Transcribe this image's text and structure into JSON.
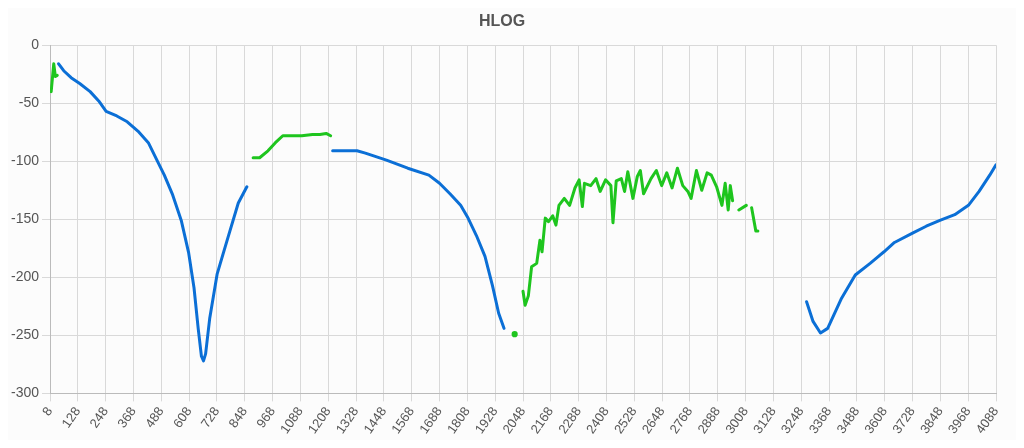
{
  "chart_data": {
    "type": "line",
    "title": "HLOG",
    "xlim": [
      8,
      4088
    ],
    "xticks": [
      8,
      128,
      248,
      368,
      488,
      608,
      728,
      848,
      968,
      1088,
      1208,
      1328,
      1448,
      1568,
      1688,
      1808,
      1928,
      2048,
      2168,
      2288,
      2408,
      2528,
      2648,
      2768,
      2888,
      3008,
      3128,
      3248,
      3368,
      3488,
      3608,
      3728,
      3848,
      3968,
      4088
    ],
    "ylim": [
      -300,
      0
    ],
    "yticks": [
      -300,
      -250,
      -200,
      -150,
      -100,
      -50,
      0
    ],
    "grid": true,
    "legend": false,
    "series": [
      {
        "color": "#0b6fd6",
        "x": [
          45,
          67,
          99,
          136,
          181,
          218,
          250,
          296,
          341,
          387,
          432,
          469,
          501,
          537,
          574,
          606,
          629,
          647,
          661,
          670,
          679,
          697,
          729,
          775,
          820,
          857,
          1000,
          1227,
          1332,
          1368,
          1459,
          1551,
          1642,
          1688,
          1733,
          1779,
          1811,
          1847,
          1884,
          1916,
          1943,
          1966,
          2500,
          3271,
          3299,
          3331,
          3362,
          3422,
          3481,
          3545,
          3605,
          3650,
          3728,
          3787,
          3846,
          3910,
          3969,
          4015,
          4061,
          4088
        ],
        "values": [
          -16,
          -22,
          -28,
          -33,
          -40,
          -48,
          -57,
          -61,
          -66,
          -74,
          -84,
          -99,
          -112,
          -129,
          -151,
          -179,
          -209,
          -244,
          -268,
          -272,
          -266,
          -235,
          -197,
          -166,
          -136,
          -122,
          null,
          -91,
          -91,
          -93,
          -99,
          -106,
          -112,
          -119,
          -128,
          -138,
          -149,
          -164,
          -182,
          -207,
          -231,
          -244,
          null,
          -221,
          -238,
          -248,
          -244,
          -218,
          -198,
          -188,
          -178,
          -170,
          -162,
          -156,
          -151,
          -146,
          -138,
          -126,
          -112,
          -103
        ]
      },
      {
        "color": "#1ec51e",
        "x": [
          13,
          24,
          31,
          39,
          500,
          884,
          912,
          948,
          980,
          1012,
          1049,
          1094,
          1140,
          1172,
          1199,
          1218,
          1600,
          2012,
          2030,
          2048,
          2057,
          2071,
          2085,
          2107,
          2121,
          2130,
          2144,
          2158,
          2176,
          2190,
          2203,
          2226,
          2249,
          2272,
          2290,
          2304,
          2313,
          2340,
          2363,
          2381,
          2404,
          2427,
          2436,
          2450,
          2472,
          2486,
          2500,
          2522,
          2541,
          2554,
          2568,
          2600,
          2623,
          2646,
          2668,
          2691,
          2714,
          2737,
          2759,
          2773,
          2796,
          2819,
          2842,
          2860,
          2883,
          2906,
          2920,
          2933,
          2942,
          2952,
          2965,
          2979,
          3011,
          3022,
          3034,
          3052,
          3061
        ],
        "values": [
          -40,
          -16,
          -27,
          -26,
          null,
          -97,
          -97,
          -91,
          -84,
          -78,
          -78,
          -78,
          -77,
          -77,
          -76,
          -78,
          null,
          -249,
          null,
          -212,
          -224,
          -216,
          -191,
          -188,
          -168,
          -178,
          -149,
          -152,
          -147,
          -155,
          -138,
          -132,
          -138,
          -123,
          -116,
          -139,
          -119,
          -121,
          -115,
          -126,
          -116,
          -121,
          -153,
          -117,
          -115,
          -126,
          -109,
          -132,
          -113,
          -108,
          -128,
          -115,
          -108,
          -121,
          -110,
          -123,
          -106,
          -121,
          -126,
          -132,
          -108,
          -125,
          -110,
          -112,
          -122,
          -138,
          -119,
          -142,
          -121,
          -134,
          null,
          -142,
          -138,
          null,
          -140,
          -160,
          -160
        ]
      }
    ]
  }
}
